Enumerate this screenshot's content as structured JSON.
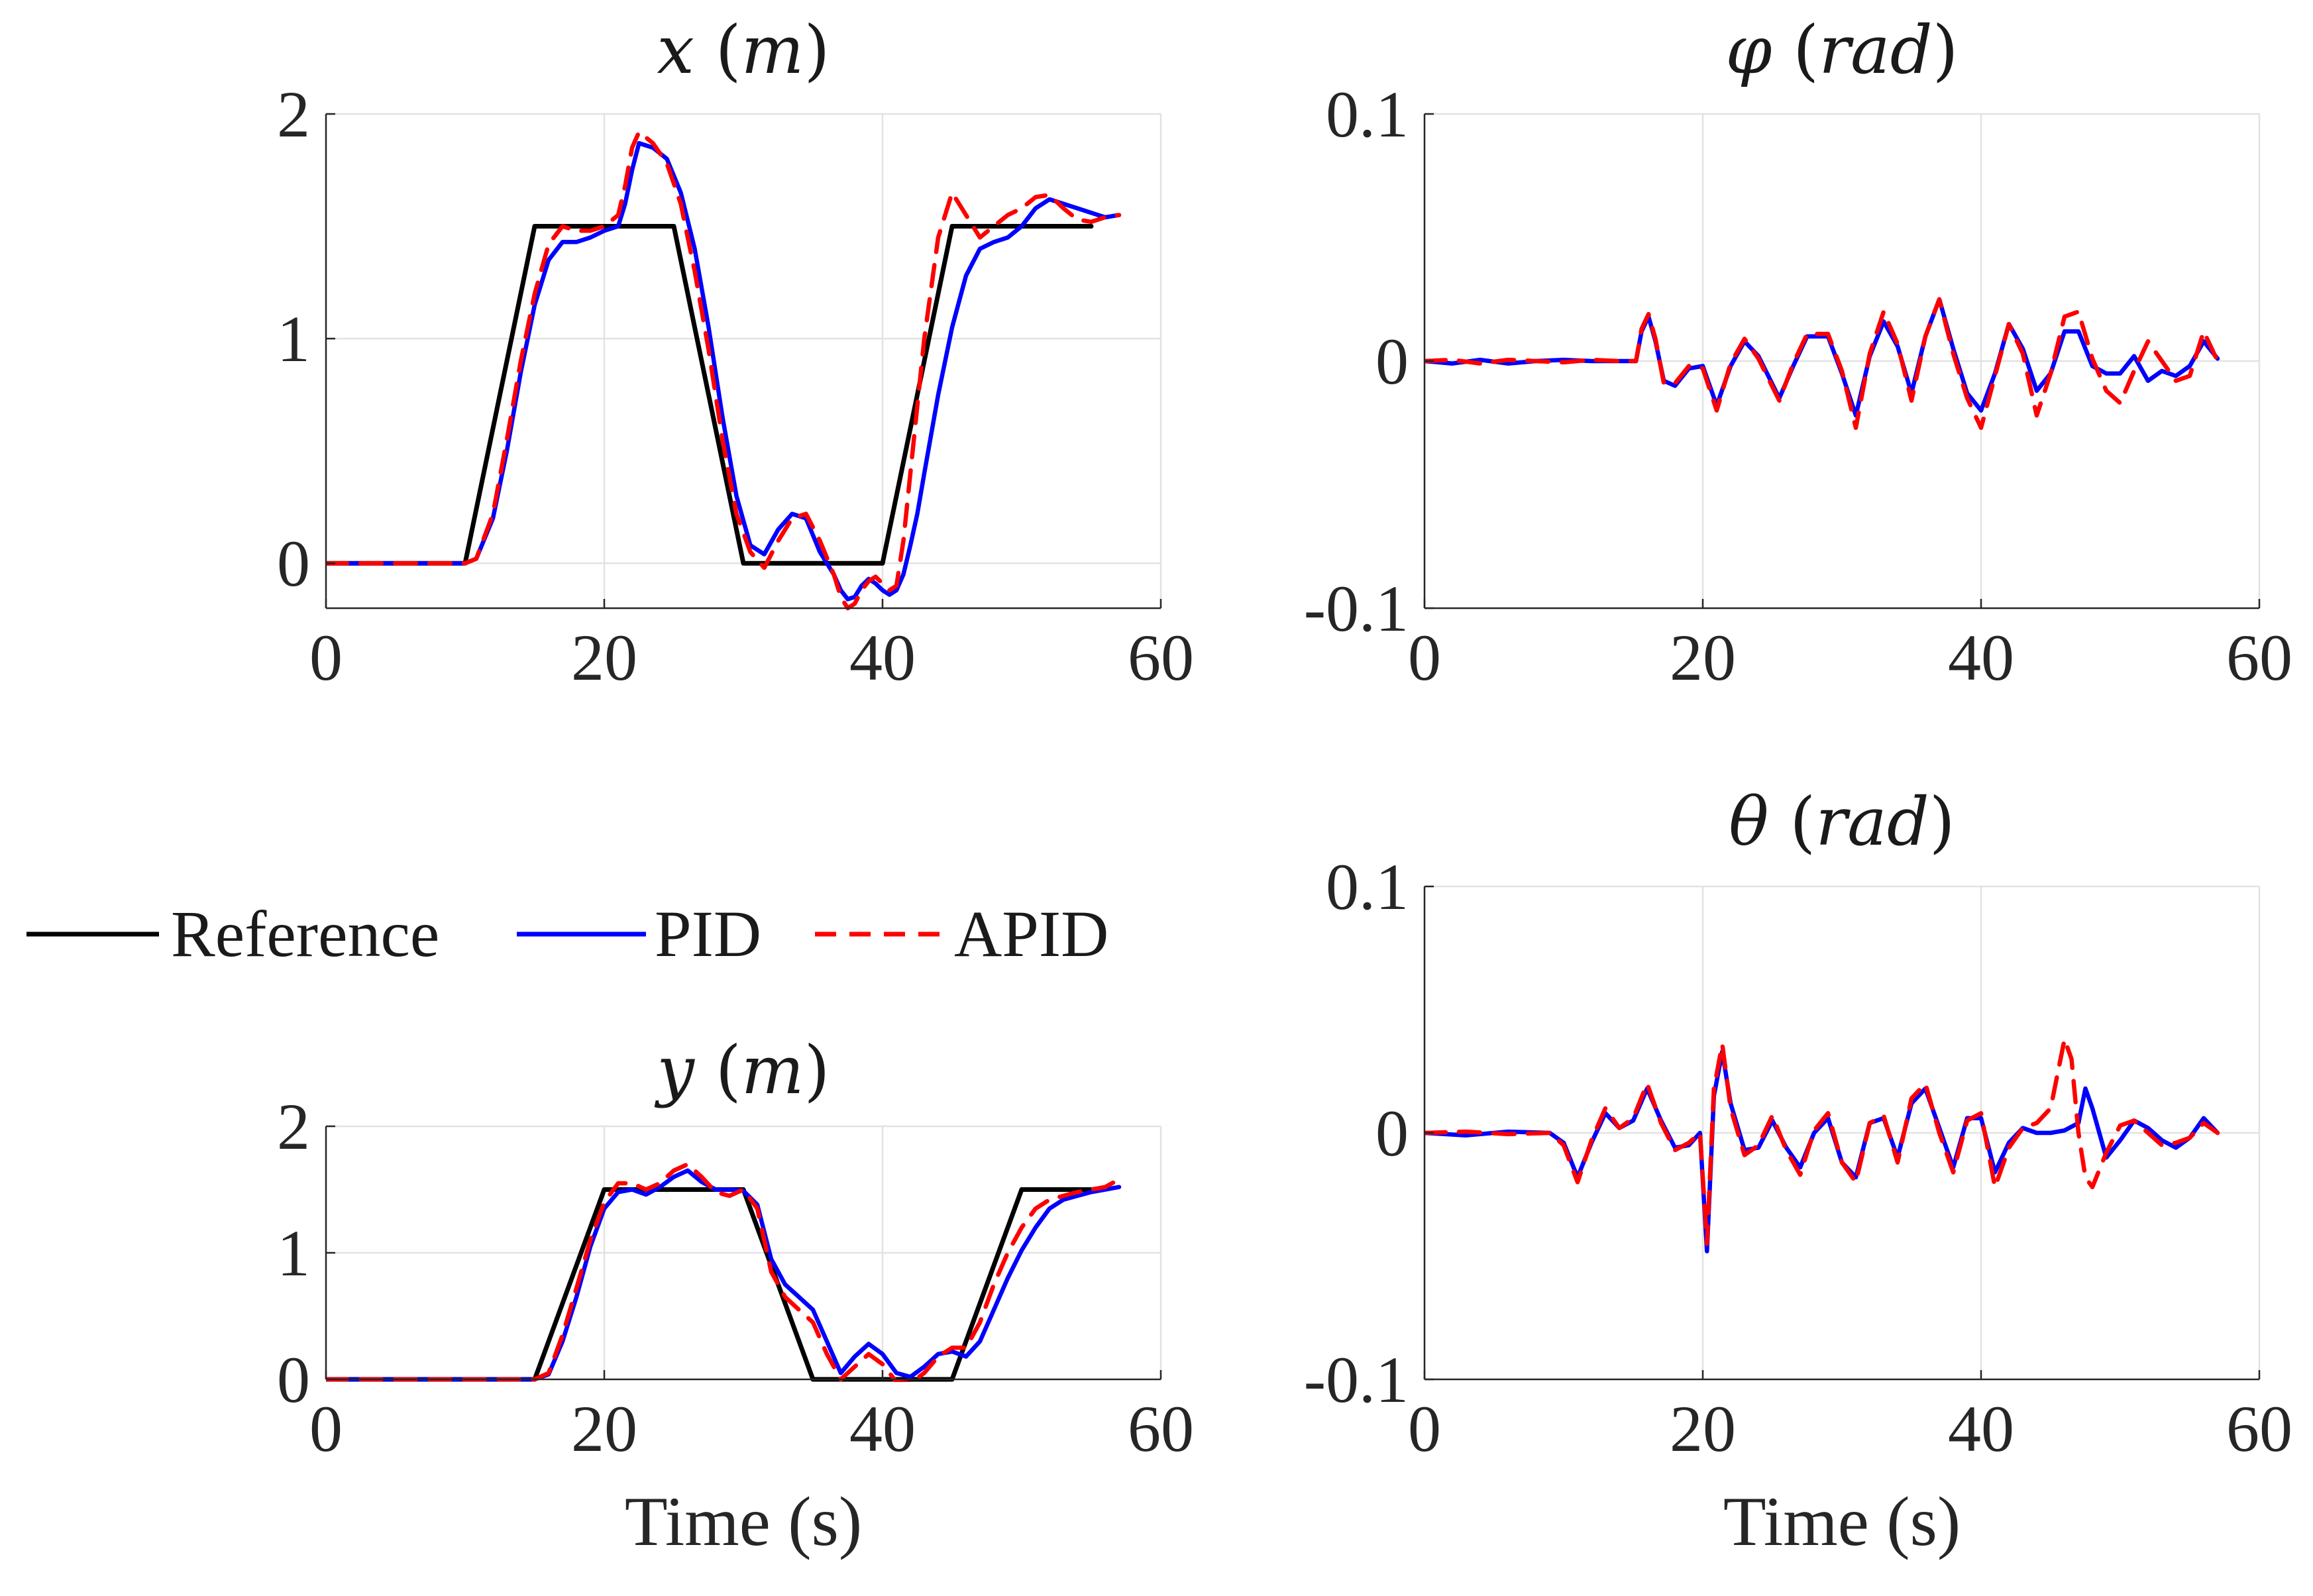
{
  "colors": {
    "Reference": "#000000",
    "PID": "#0000ff",
    "APID": "#ff0000"
  },
  "chart_data": [
    {
      "id": "x",
      "type": "line",
      "title": {
        "sym": "x",
        "unit": "m"
      },
      "xlabel": "",
      "xlim": [
        0,
        60
      ],
      "ylim": [
        -0.2,
        2
      ],
      "xticks": [
        0,
        20,
        40,
        60
      ],
      "yticks": [
        0,
        1,
        2
      ],
      "xtick_labels": [
        "0",
        "20",
        "40",
        "60"
      ],
      "ytick_labels": [
        "0",
        "1",
        "2"
      ],
      "grid": true,
      "series": [
        {
          "name": "Reference",
          "x": [
            0,
            10,
            15,
            25,
            30,
            40,
            45,
            55
          ],
          "y": [
            0,
            0,
            1.5,
            1.5,
            0,
            0,
            1.5,
            1.5
          ]
        },
        {
          "name": "PID",
          "x": [
            0,
            10,
            10.8,
            12,
            13,
            14,
            15,
            16,
            17,
            18,
            19,
            20,
            21,
            21.5,
            22,
            22.5,
            23.5,
            24.5,
            25.5,
            26.5,
            27.5,
            28.5,
            29.5,
            30.5,
            31.5,
            32.5,
            33.5,
            34.5,
            35.5,
            36.5,
            37,
            37.5,
            38,
            38.5,
            39,
            39.5,
            40,
            40.5,
            41,
            41.5,
            42,
            42.5,
            43,
            44,
            45,
            46,
            47,
            48,
            49,
            50,
            51,
            52,
            53,
            54,
            55,
            56,
            57
          ],
          "y": [
            0,
            0,
            0.02,
            0.2,
            0.5,
            0.85,
            1.15,
            1.35,
            1.43,
            1.43,
            1.45,
            1.48,
            1.5,
            1.6,
            1.75,
            1.87,
            1.85,
            1.8,
            1.65,
            1.4,
            1.05,
            0.65,
            0.3,
            0.08,
            0.04,
            0.15,
            0.22,
            0.2,
            0.05,
            -0.05,
            -0.12,
            -0.16,
            -0.15,
            -0.1,
            -0.07,
            -0.09,
            -0.12,
            -0.14,
            -0.12,
            -0.05,
            0.08,
            0.22,
            0.4,
            0.75,
            1.05,
            1.28,
            1.4,
            1.43,
            1.45,
            1.5,
            1.58,
            1.62,
            1.6,
            1.58,
            1.56,
            1.54,
            1.55
          ]
        },
        {
          "name": "APID",
          "x": [
            0,
            10,
            10.8,
            12,
            13,
            14,
            15,
            16,
            17,
            18,
            19,
            20,
            21,
            21.5,
            22,
            22.5,
            23.5,
            24.5,
            25.5,
            26.5,
            27.5,
            28.5,
            29.5,
            30.5,
            31.5,
            32.5,
            33.5,
            34.5,
            35.5,
            36.5,
            37,
            37.5,
            38,
            38.5,
            39,
            39.5,
            40,
            40.5,
            41,
            41.5,
            42,
            42.5,
            43,
            44,
            45,
            46,
            47,
            48,
            49,
            50,
            51,
            52,
            53,
            54,
            55,
            56,
            57
          ],
          "y": [
            0,
            0,
            0.02,
            0.22,
            0.55,
            0.9,
            1.2,
            1.42,
            1.5,
            1.48,
            1.48,
            1.5,
            1.55,
            1.68,
            1.85,
            1.92,
            1.87,
            1.78,
            1.6,
            1.3,
            0.95,
            0.55,
            0.22,
            0.05,
            -0.02,
            0.1,
            0.2,
            0.22,
            0.1,
            -0.05,
            -0.15,
            -0.2,
            -0.18,
            -0.12,
            -0.08,
            -0.06,
            -0.09,
            -0.12,
            -0.1,
            0.1,
            0.4,
            0.7,
            1.0,
            1.45,
            1.65,
            1.55,
            1.45,
            1.5,
            1.55,
            1.58,
            1.63,
            1.64,
            1.58,
            1.53,
            1.52,
            1.54,
            1.55
          ]
        }
      ]
    },
    {
      "id": "phi",
      "type": "line",
      "title": {
        "sym": "φ",
        "unit": "rad"
      },
      "xlabel": "",
      "xlim": [
        0,
        60
      ],
      "ylim": [
        -0.1,
        0.1
      ],
      "xticks": [
        0,
        20,
        40,
        60
      ],
      "yticks": [
        -0.1,
        0,
        0.1
      ],
      "xtick_labels": [
        "0",
        "20",
        "40",
        "60"
      ],
      "ytick_labels": [
        "-0.1",
        "0",
        "0.1"
      ],
      "grid": true,
      "series": [
        {
          "name": "PID",
          "x": [
            0,
            2,
            4,
            6,
            8,
            10,
            12,
            14,
            15.2,
            15.6,
            16.1,
            16.6,
            17.2,
            18,
            19,
            20,
            21,
            22,
            23,
            24,
            25.5,
            26.5,
            27.5,
            29,
            30,
            31,
            32,
            33,
            34,
            35,
            36,
            37,
            38,
            39,
            40,
            41,
            42,
            43,
            44,
            45,
            46,
            47,
            48,
            49,
            50,
            51,
            52,
            53,
            54,
            55,
            56,
            57
          ],
          "y": [
            0,
            -0.001,
            0.0005,
            -0.001,
            0,
            0.0005,
            0,
            0,
            0,
            0.012,
            0.018,
            0.008,
            -0.008,
            -0.01,
            -0.003,
            -0.002,
            -0.018,
            -0.002,
            0.008,
            0.002,
            -0.015,
            -0.002,
            0.01,
            0.01,
            -0.005,
            -0.022,
            0.002,
            0.016,
            0.006,
            -0.013,
            0.01,
            0.025,
            0.005,
            -0.013,
            -0.02,
            -0.005,
            0.015,
            0.005,
            -0.012,
            -0.005,
            0.012,
            0.012,
            -0.002,
            -0.005,
            -0.005,
            0.002,
            -0.008,
            -0.004,
            -0.006,
            -0.002,
            0.008,
            0.001
          ]
        },
        {
          "name": "APID",
          "x": [
            0,
            2,
            4,
            6,
            8,
            10,
            12,
            14,
            15.2,
            15.6,
            16.1,
            16.6,
            17.2,
            18,
            19,
            20,
            21,
            22,
            23,
            24,
            25.5,
            26.5,
            27.5,
            29,
            30,
            31,
            32,
            33,
            34,
            35,
            36,
            37,
            38,
            39,
            40,
            41,
            42,
            43,
            44,
            45,
            46,
            47,
            48,
            49,
            50,
            51,
            52,
            53,
            54,
            55,
            56,
            57
          ],
          "y": [
            0,
            0.0005,
            -0.001,
            0.0005,
            0,
            -0.0005,
            0.0005,
            0,
            0,
            0.013,
            0.019,
            0.009,
            -0.009,
            -0.009,
            -0.002,
            -0.003,
            -0.02,
            -0.001,
            0.009,
            0.001,
            -0.016,
            -0.001,
            0.011,
            0.011,
            -0.004,
            -0.027,
            0.003,
            0.02,
            0.007,
            -0.016,
            0.01,
            0.025,
            0.003,
            -0.015,
            -0.027,
            -0.006,
            0.015,
            0.003,
            -0.022,
            -0.005,
            0.018,
            0.02,
            0.001,
            -0.012,
            -0.017,
            -0.004,
            0.008,
            0.0,
            -0.008,
            -0.006,
            0.012,
            0.0
          ]
        }
      ]
    },
    {
      "id": "y",
      "type": "line",
      "title": {
        "sym": "y",
        "unit": "m"
      },
      "xlabel": "Time (s)",
      "xlim": [
        0,
        60
      ],
      "ylim": [
        0,
        2
      ],
      "xticks": [
        0,
        20,
        40,
        60
      ],
      "yticks": [
        0,
        1,
        2
      ],
      "xtick_labels": [
        "0",
        "20",
        "40",
        "60"
      ],
      "ytick_labels": [
        "0",
        "1",
        "2"
      ],
      "grid": true,
      "series": [
        {
          "name": "Reference",
          "x": [
            0,
            15,
            20,
            30,
            35,
            45,
            50,
            55
          ],
          "y": [
            0,
            0,
            1.5,
            1.5,
            0,
            0,
            1.5,
            1.5
          ]
        },
        {
          "name": "PID",
          "x": [
            0,
            15,
            16,
            17,
            18,
            19,
            20,
            21,
            22,
            23,
            24,
            25,
            26,
            27,
            28,
            29,
            30,
            31,
            32,
            33,
            34,
            35,
            36,
            37,
            38,
            39,
            40,
            41,
            42,
            43,
            44,
            45,
            46,
            47,
            48,
            49,
            50,
            51,
            52,
            53,
            54,
            55,
            56,
            57
          ],
          "y": [
            0,
            0,
            0.04,
            0.3,
            0.65,
            1.05,
            1.35,
            1.48,
            1.5,
            1.46,
            1.52,
            1.6,
            1.65,
            1.56,
            1.5,
            1.5,
            1.49,
            1.38,
            0.95,
            0.75,
            0.65,
            0.55,
            0.3,
            0.05,
            0.18,
            0.28,
            0.2,
            0.05,
            0.02,
            0.1,
            0.2,
            0.22,
            0.18,
            0.3,
            0.55,
            0.8,
            1.02,
            1.2,
            1.35,
            1.42,
            1.45,
            1.48,
            1.5,
            1.52
          ]
        },
        {
          "name": "APID",
          "x": [
            0,
            15,
            16,
            17,
            18,
            19,
            20,
            21,
            22,
            23,
            24,
            25,
            26,
            27,
            28,
            29,
            30,
            31,
            32,
            33,
            34,
            35,
            36,
            37,
            38,
            39,
            40,
            41,
            42,
            43,
            44,
            45,
            46,
            47,
            48,
            49,
            50,
            51,
            52,
            53,
            54,
            55,
            56,
            57
          ],
          "y": [
            0,
            0,
            0.05,
            0.35,
            0.72,
            1.1,
            1.4,
            1.55,
            1.55,
            1.5,
            1.55,
            1.65,
            1.7,
            1.6,
            1.48,
            1.45,
            1.5,
            1.35,
            0.85,
            0.65,
            0.55,
            0.45,
            0.2,
            0.0,
            0.1,
            0.2,
            0.12,
            -0.02,
            -0.03,
            0.05,
            0.18,
            0.25,
            0.25,
            0.45,
            0.75,
            1.0,
            1.2,
            1.35,
            1.42,
            1.45,
            1.48,
            1.5,
            1.52,
            1.58
          ]
        }
      ]
    },
    {
      "id": "theta",
      "type": "line",
      "title": {
        "sym": "θ",
        "unit": "rad"
      },
      "xlabel": "Time (s)",
      "xlim": [
        0,
        60
      ],
      "ylim": [
        -0.1,
        0.1
      ],
      "xticks": [
        0,
        20,
        40,
        60
      ],
      "yticks": [
        -0.1,
        0,
        0.1
      ],
      "xtick_labels": [
        "0",
        "20",
        "40",
        "60"
      ],
      "ytick_labels": [
        "-0.1",
        "0",
        "0.1"
      ],
      "grid": true,
      "series": [
        {
          "name": "PID",
          "x": [
            0,
            3,
            6,
            9,
            10,
            11,
            12,
            13,
            14,
            15,
            16,
            17,
            18,
            19,
            19.8,
            20.3,
            20.8,
            21.4,
            22,
            23,
            24,
            25,
            26,
            27,
            28,
            29,
            30,
            31,
            32,
            33,
            34,
            35,
            36,
            37,
            38,
            39,
            40,
            41,
            42,
            43,
            44,
            45,
            46,
            47,
            47.5,
            48,
            49,
            50,
            51,
            52,
            53,
            54,
            55,
            56,
            57
          ],
          "y": [
            0,
            -0.001,
            0.0005,
            0,
            -0.004,
            -0.018,
            -0.004,
            0.008,
            0.002,
            0.005,
            0.018,
            0.005,
            -0.006,
            -0.005,
            0.0,
            -0.048,
            0.015,
            0.033,
            0.012,
            -0.007,
            -0.006,
            0.005,
            -0.006,
            -0.014,
            0.0,
            0.006,
            -0.012,
            -0.018,
            0.004,
            0.006,
            -0.01,
            0.012,
            0.018,
            0.002,
            -0.014,
            0.006,
            0.006,
            -0.016,
            -0.004,
            0.002,
            0.0,
            0.0,
            0.001,
            0.004,
            0.018,
            0.01,
            -0.01,
            -0.003,
            0.005,
            0.002,
            -0.003,
            -0.006,
            -0.002,
            0.006,
            0.0
          ]
        },
        {
          "name": "APID",
          "x": [
            0,
            3,
            6,
            9,
            10,
            11,
            12,
            13,
            14,
            15,
            16,
            17,
            18,
            19,
            19.8,
            20.3,
            20.8,
            21.4,
            22,
            23,
            24,
            25,
            26,
            27,
            28,
            29,
            30,
            31,
            32,
            33,
            34,
            35,
            36,
            37,
            38,
            39,
            40,
            41,
            42,
            43,
            44,
            45,
            46,
            46.5,
            47,
            47.5,
            48,
            49,
            50,
            51,
            52,
            53,
            54,
            55,
            56,
            57
          ],
          "y": [
            0,
            0.0005,
            -0.0005,
            0,
            -0.005,
            -0.02,
            -0.003,
            0.01,
            0.002,
            0.006,
            0.02,
            0.004,
            -0.007,
            -0.004,
            0.0,
            -0.045,
            0.018,
            0.036,
            0.01,
            -0.009,
            -0.005,
            0.007,
            -0.007,
            -0.017,
            0.001,
            0.008,
            -0.012,
            -0.02,
            0.004,
            0.007,
            -0.012,
            0.014,
            0.02,
            0.0,
            -0.016,
            0.005,
            0.008,
            -0.022,
            -0.006,
            0.002,
            0.004,
            0.01,
            0.038,
            0.03,
            0.0,
            -0.018,
            -0.022,
            -0.008,
            0.003,
            0.005,
            0.0,
            -0.005,
            -0.004,
            -0.002,
            0.004,
            0.0
          ]
        }
      ]
    }
  ],
  "legend": {
    "items": [
      {
        "name": "Reference",
        "label": "Reference",
        "color": "#000000",
        "dash": false
      },
      {
        "name": "PID",
        "label": "PID",
        "color": "#0000ff",
        "dash": false
      },
      {
        "name": "APID",
        "label": "APID",
        "color": "#ff0000",
        "dash": true
      }
    ]
  }
}
